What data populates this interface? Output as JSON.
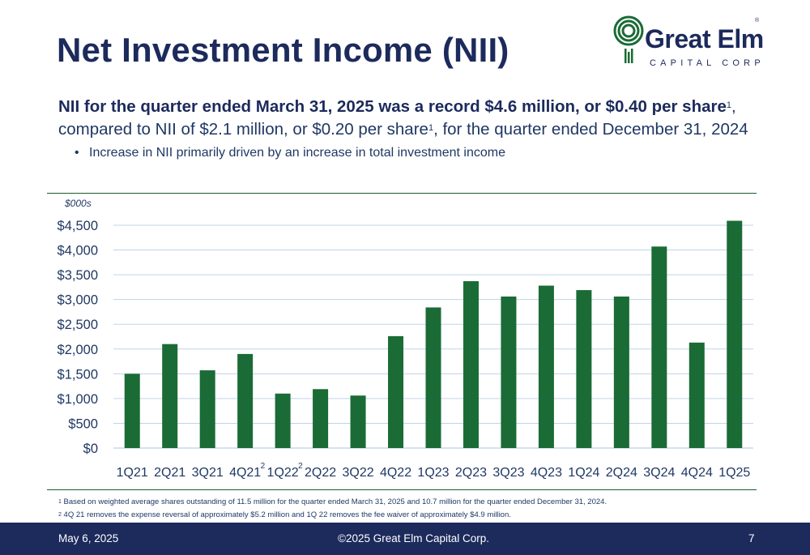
{
  "slide": {
    "title": "Net Investment Income (NII)",
    "headline_bold": "NII for the quarter ended March 31, 2025 was a record $4.6 million, or $0.40 per share",
    "headline_sup1": "1",
    "headline_rest1": ", compared to NII of $2.1 million, or $0.20 per share",
    "headline_sup2": "1",
    "headline_rest2": ", for the quarter ended December 31, 2024",
    "bullet": "Increase in NII primarily driven by an increase in total investment income"
  },
  "logo": {
    "name": "Great Elm",
    "registered": "®",
    "subtitle": "CAPITAL CORP",
    "icon": "great-elm-tree-icon"
  },
  "colors": {
    "bar": "#1a6b35",
    "navy": "#1c2a5c",
    "grid": "#bfd3ea",
    "rule": "#1a5e2a"
  },
  "chart_data": {
    "type": "bar",
    "unit_label": "$000s",
    "categories": [
      "1Q21",
      "2Q21",
      "3Q21",
      "4Q21",
      "1Q22",
      "2Q22",
      "3Q22",
      "4Q22",
      "1Q23",
      "2Q23",
      "3Q23",
      "4Q23",
      "1Q24",
      "2Q24",
      "3Q24",
      "4Q24",
      "1Q25"
    ],
    "category_superscripts": [
      "",
      "",
      "",
      "2",
      "2",
      "",
      "",
      "",
      "",
      "",
      "",
      "",
      "",
      "",
      "",
      "",
      ""
    ],
    "values": [
      1500,
      2100,
      1570,
      1900,
      1100,
      1190,
      1060,
      2260,
      2840,
      3370,
      3060,
      3280,
      3190,
      3060,
      4070,
      2130,
      4590
    ],
    "ylim": [
      0,
      4500
    ],
    "yticks": [
      0,
      500,
      1000,
      1500,
      2000,
      2500,
      3000,
      3500,
      4000,
      4500
    ],
    "ytick_labels": [
      "$0",
      "$500",
      "$1,000",
      "$1,500",
      "$2,000",
      "$2,500",
      "$3,000",
      "$3,500",
      "$4,000",
      "$4,500"
    ],
    "grid": true
  },
  "footnotes": {
    "n1_mark": "1",
    "n1": "Based on weighted average shares outstanding of 11.5 million for the quarter ended March 31, 2025 and 10.7 million for the quarter ended December 31, 2024.",
    "n2_mark": "2",
    "n2": "4Q 21 removes the expense reversal of approximately $5.2 million and 1Q 22 removes the fee waiver of approximately $4.9 million."
  },
  "footer": {
    "date": "May 6, 2025",
    "copyright": "©2025 Great Elm Capital Corp.",
    "page": "7"
  }
}
